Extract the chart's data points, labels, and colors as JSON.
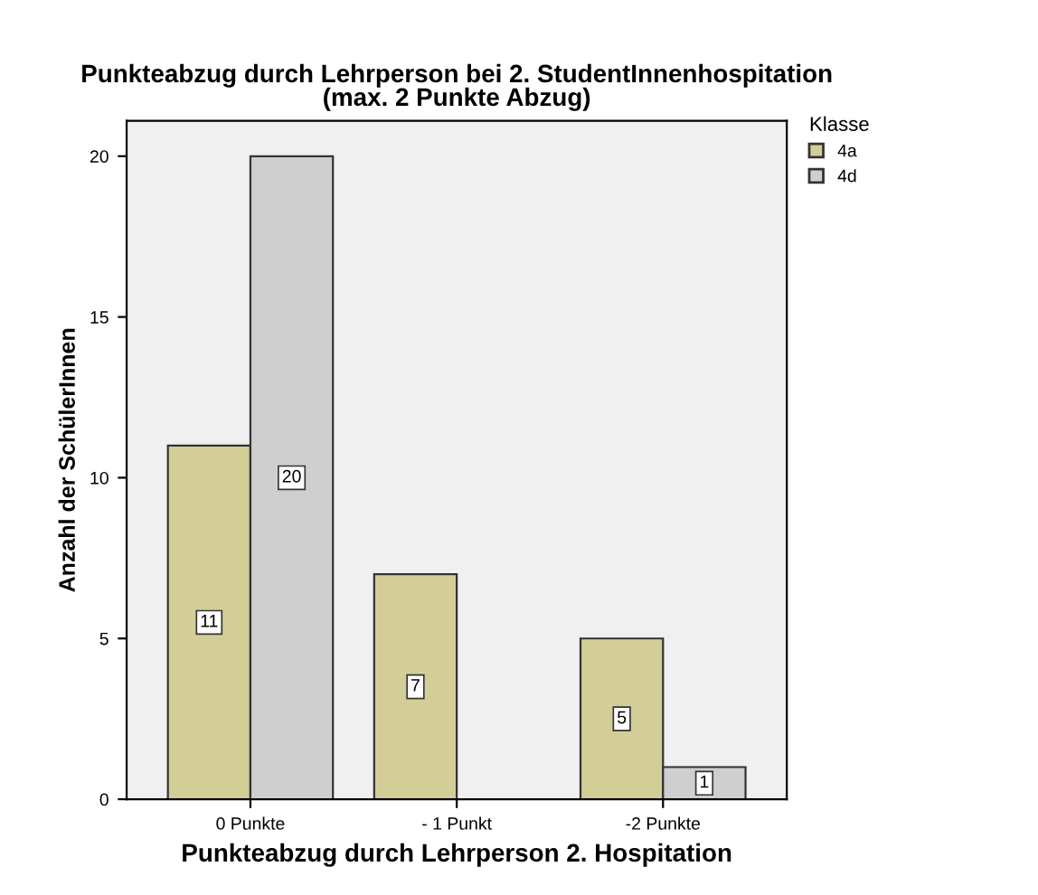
{
  "chart_data": {
    "type": "bar",
    "title": "Punkteabzug durch Lehrperson bei 2. StudentInnenhospitation\n(max. 2 Punkte Abzug)",
    "xlabel": "Punkteabzug durch Lehrperson 2. Hospitation",
    "ylabel": "Anzahl der SchülerInnen",
    "legend_title": "Klasse",
    "categories": [
      "0 Punkte",
      "- 1 Punkt",
      "-2 Punkte"
    ],
    "series": [
      {
        "name": "4a",
        "color": "#d3ce98",
        "values": [
          11,
          7,
          5
        ],
        "value_labels": [
          "11",
          "7",
          "5"
        ]
      },
      {
        "name": "4d",
        "color": "#cfcfcf",
        "values": [
          20,
          0,
          1
        ],
        "value_labels": [
          "20",
          null,
          "1"
        ]
      }
    ],
    "ylim": [
      0,
      21.1
    ],
    "yticks": [
      0,
      5,
      10,
      15,
      20
    ],
    "grid": false,
    "legend": "top right"
  }
}
